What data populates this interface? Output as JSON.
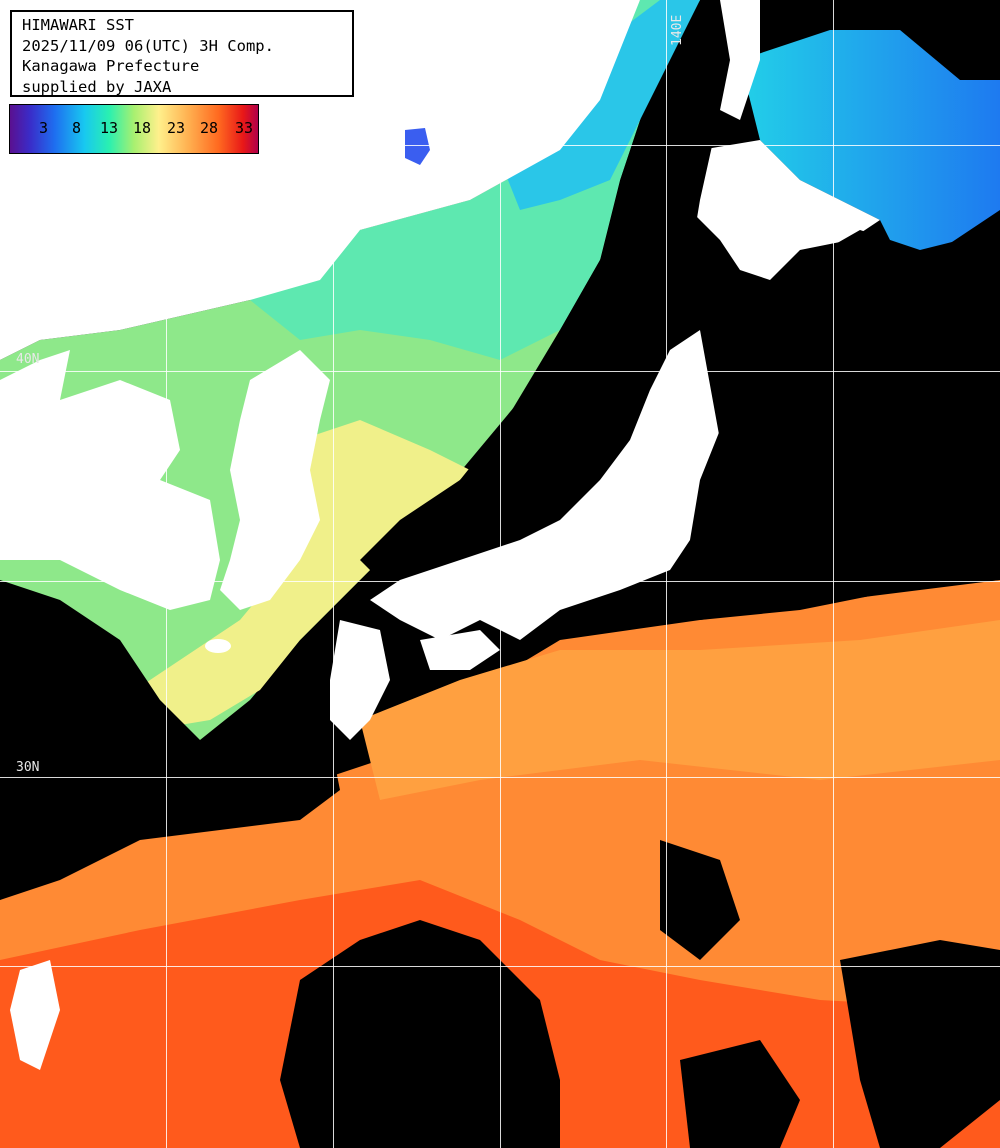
{
  "title_box": {
    "line1": "HIMAWARI SST",
    "line2": "2025/11/09 06(UTC) 3H Comp.",
    "line3": "Kanagawa Prefecture",
    "line4": "supplied by JAXA"
  },
  "colorbar": {
    "ticks": [
      "3",
      "8",
      "13",
      "18",
      "23",
      "28",
      "33"
    ],
    "colors": [
      "#5a1090",
      "#3a2cc8",
      "#1e6ef0",
      "#18c8f0",
      "#2af0b0",
      "#a8f070",
      "#fff08c",
      "#ffb050",
      "#ff6a20",
      "#e81818",
      "#b0004a"
    ]
  },
  "grid_labels": {
    "lat_40": "40N",
    "lat_30": "30N",
    "lon_140": "140E"
  },
  "colors": {
    "land": "#ffffff",
    "cloud_mask": "#000000",
    "grid": "#ffffff"
  }
}
